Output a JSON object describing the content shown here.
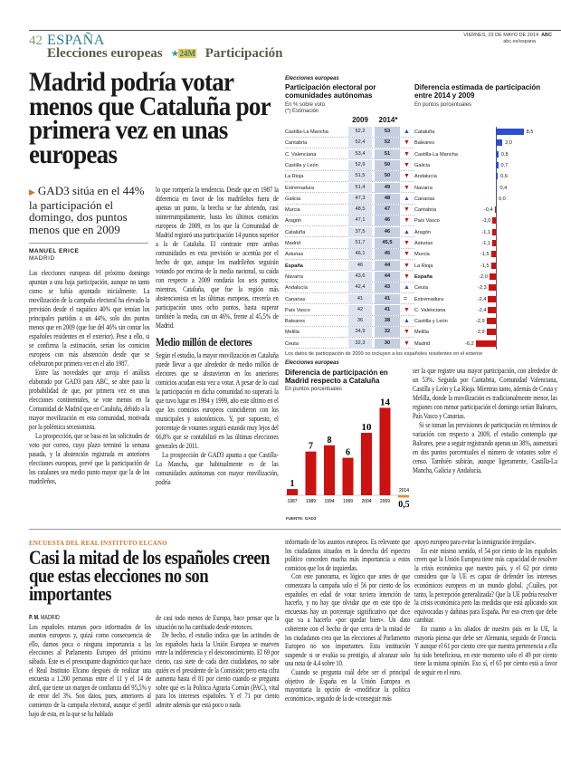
{
  "header": {
    "page_number": "42",
    "section": "ESPAÑA",
    "subsection": "Elecciones europeas",
    "logo_text": "24M",
    "topic": "Participación",
    "date": "VIERNES, 23 DE MAYO DE 2014",
    "site": "abc.es/espana",
    "brand": "ABC"
  },
  "article1": {
    "headline": "Madrid podría votar menos que Cataluña por primera vez en unas europeas",
    "dek": "GAD3 sitúa en el 44% la participación el domingo, dos puntos menos que en 2009",
    "author": "MANUEL ERICE",
    "location": "MADRID",
    "col1": [
      "Las elecciones europeas del próximo domingo apuntan a una baja participación, aunque no tanto como se había apuntado inicialmente. La movilización de la campaña electoral ha elevado la previsión desde el raquítico 40% que temían los principales partidos a un 44%, solo dos puntos menos que en 2009 (que fue del 46% sin contar los españoles residentes en el exterior). Pese a ello, si se confirma la estimación, serían los comicios europeos con más abstención desde que se celebraron por primera vez en el año 1987.",
      "Entre las novedades que arroja el análisis elaborado por GAD3 para ABC, se abre paso la probabilidad de que, por primera vez en unas elecciones continentales, se vote menos en la Comunidad de Madrid que en Cataluña, debido a la mayor movilización en esta comunidad, motivada por la polémica secesionista.",
      "La prospección, que se basa en las solicitudes de voto por correo, cuyo plazo terminó la semana pasada, y la abstención registrada en anteriores elecciones europeas, prevé que la participación de los catalanes sea medio punto mayor que la de los madrileños,"
    ],
    "col2": [
      "lo que rompería la tendencia. Desde que en 1987 la diferencia en favor de los madrileños fuera de apenas un punto, la brecha se fue abriendo, casi ininterrumpidamente, hasta los últimos comicios europeos de 2009, en los que la Comunidad de Madrid registró una participación 14 puntos superior a la de Cataluña. El contraste entre ambas comunidades en esta previsión se acentúa por el hecho de que, aunque los madrileños seguirán votando por encima de la media nacional, su caída con respecto a 2009 rondaría los seis puntos; mientras, Cataluña, que fue la región más abstencionista en las últimas europeas, crecería en participación unos ocho puntos, hasta superar también la media, con un 46%, frente al 45,5% de Madrid."
    ],
    "subhead": "Medio millón de electores",
    "col2b": [
      "Según el estudio, la mayor movilización en Cataluña puede llevar a que alrededor de medio millón de electores que se abstuvieron en los anteriores comicios acudan esta vez a votar. A pesar de lo cual la participación en dicha comunidad no superará la que tuvo lugar en 1994 y 1999, año este último en el que los comicios europeos coincidieron con los municipales y autonómicos. Y, por supuesto, el porcentaje de votantes seguirá estando muy lejos del 66,8% que se contabilizó en las últimas elecciones generales de 2011.",
      "La prospección de GAD3 apunta a que Castilla-La Mancha, que habitualmente es de las comunidades autónomas con mayor movilización, podría"
    ],
    "col3": [
      "ser la que registre una mayor participación, con alrededor de un 53%. Seguida por Cantabria, Comunidad Valenciana, Castilla y León y La Rioja. Mientras tanto, además de Ceuta y Melilla, donde la movilización es tradicionalmente menor, las regiones con menor participación el domingo serían Baleares, País Vasco y Canarias.",
      "Si se toman las previsiones de participación en términos de variación con respecto a 2009, el estudio contempla que Baleares, pese a seguir registrando apenas un 38%, aumentará en dos puntos porcentuales el número de votantes sobre el censo. También subirán, aunque ligeramente, Castilla-La Mancha, Galicia y Andalucía."
    ]
  },
  "chart_data": [
    {
      "type": "table",
      "kicker": "Elecciones europeas",
      "title": "Participación electoral por comunidades autónomas",
      "subtitle": "En % sobre voto",
      "note": "(*) Estimación",
      "columns": [
        "2009",
        "2014*"
      ],
      "rows": [
        [
          "Castilla-La Mancha",
          "52,2",
          "53",
          "up"
        ],
        [
          "Cantabria",
          "52,4",
          "52",
          "down"
        ],
        [
          "C. Valenciana",
          "53,4",
          "51",
          "down"
        ],
        [
          "Castilla y León",
          "52,9",
          "50",
          "down"
        ],
        [
          "La Rioja",
          "51,5",
          "50",
          "down"
        ],
        [
          "Extremadura",
          "51,4",
          "49",
          "down"
        ],
        [
          "Galicia",
          "47,3",
          "48",
          "up"
        ],
        [
          "Murcia",
          "48,5",
          "47",
          "down"
        ],
        [
          "Aragón",
          "47,1",
          "46",
          "down"
        ],
        [
          "Cataluña",
          "37,5",
          "46",
          "up"
        ],
        [
          "Madrid",
          "51,7",
          "45,5",
          "down"
        ],
        [
          "Asturias",
          "46,1",
          "45",
          "down"
        ],
        [
          "España",
          "46",
          "44",
          "down"
        ],
        [
          "Navarra",
          "43,6",
          "44",
          "down"
        ],
        [
          "Andalucía",
          "42,4",
          "43",
          "up"
        ],
        [
          "Canarias",
          "41",
          "41",
          "equal"
        ],
        [
          "País Vasco",
          "42",
          "41",
          "down"
        ],
        [
          "Baleares",
          "36",
          "38",
          "up"
        ],
        [
          "Melilla",
          "34,9",
          "32",
          "down"
        ],
        [
          "Ceuta",
          "32,3",
          "30",
          "down"
        ]
      ],
      "footnote": "Los datos de participación de 2009 no incluyen a los españoles residentes en el exterior"
    },
    {
      "type": "bar",
      "orientation": "horizontal",
      "title": "Diferencia estimada de participación entre 2014 y 2009",
      "subtitle": "En puntos porcentuales",
      "categories": [
        "Cataluña",
        "Baleares",
        "Castilla-La Mancha",
        "Galicia",
        "Andalucía",
        "Navarra",
        "Canarias",
        "Cantabria",
        "País Vasco",
        "Aragón",
        "Asturias",
        "Murcia",
        "La Rioja",
        "España",
        "Ceuta",
        "Extremadura",
        "C. Valenciana",
        "Castilla y León",
        "Melilla",
        "Madrid"
      ],
      "values": [
        8.5,
        2.0,
        0.8,
        0.7,
        0.6,
        0.4,
        0.0,
        -0.4,
        -1.0,
        -1.1,
        -1.1,
        -1.5,
        -1.5,
        -2.0,
        -2.3,
        -2.4,
        -2.4,
        -2.9,
        -2.9,
        -6.2
      ],
      "labels": [
        "8,5",
        "2,0",
        "0,8",
        "0,7",
        "0,6",
        "0,4",
        "0,0",
        "-0,4",
        "-1,0",
        "-1,1",
        "-1,1",
        "-1,5",
        "-1,5",
        "-2,0",
        "-2,3",
        "-2,4",
        "-2,4",
        "-2,9",
        "-2,9",
        "-6,2"
      ],
      "colors": {
        "positive": "#2a4fcf",
        "negative": "#cc1111"
      }
    },
    {
      "type": "bar",
      "kicker": "Elecciones europeas",
      "title": "Diferencia de participación en Madrid respecto a Cataluña",
      "subtitle": "En puntos porcentuales",
      "categories": [
        "1987",
        "1989",
        "1994",
        "1999",
        "2004",
        "2009",
        "2014"
      ],
      "values": [
        1,
        7,
        8,
        6,
        10,
        14,
        -0.5
      ],
      "labels": [
        "1",
        "7",
        "8",
        "6",
        "10",
        "14",
        "0,5"
      ],
      "colors": {
        "past": "#cc1111",
        "estimate": "#e88a2a"
      },
      "source": "FUENTE: GAD3"
    }
  ],
  "article2": {
    "kicker": "ENCUESTA DEL REAL INSTITUTO ELCANO",
    "headline": "Casi la mitad de los españoles creen que estas elecciones no son importantes",
    "author": "P. M.",
    "location": "MADRID",
    "col1": [
      "Los españoles estamos poco informados de los asuntos europeos y, quizá como consecuencia de ello, damos poca o ninguna importancia a las elecciones al Parlamento Europeo del próximo sábado. Este es el preocupante diagnóstico que hace el Real Instituto Elcano después de realizar una encuesta a 1.200 personas entre el 11 y el 14 de abril, que tiene un margen de confianza del 95,5% y de error del 3%. Son datos, pues, anteriores al comienzo de la campaña electoral, aunque el perfil bajo de esta, en la que se ha hablado"
    ],
    "col2": [
      "de casi todo menos de Europa, hace pensar que la situación no ha cambiado desde entonces.",
      "De hecho, el estudio indica que las actitudes de los españoles hacia la Unión Europea se mueven entre la indiferencia y el desconocimiento. El 69 por ciento, casi siete de cada diez ciudadanos, no sabe quién es el presidente de la Comisión; pero esta cifra aumenta hasta el 81 por ciento cuando se pregunta sobre qué es la Política Agraria Común (PAC), vital para los intereses españoles. Y el 71 por ciento admite además que está poco o nada"
    ],
    "col3": [
      "informado de los asuntos europeos. Es relevante que los ciudadanos situados en la derecha del espectro político conceden mucha más importancia a estos comicios que los de izquierdas.",
      "Con este panorama, es lógico que antes de que comenzara la campaña solo el 56 por ciento de los españoles en edad de votar tuviera intención de hacerlo, y no hay que olvidar que en este tipo de encuestas hay un porcentaje significativo que dice que va a hacerlo «por quedar bien». Un dato coherente con el hecho de que cerca de la mitad de los ciudadanos crea que las elecciones al Parlamento Europeo no son importantes. Esta institución suspende si se evalúa su prestigio, al alcanzar solo una nota de 4,4 sobre 10.",
      "Cuando se pregunta cuál debe ser el principal objetivo de España en la Unión Europea es mayoritaria la opción de «modificar la política económica», seguido de la de «conseguir más"
    ],
    "col4": [
      "apoyo europeo para evitar la inmigración irregular».",
      "En este mismo sentido, el 54 por ciento de los españoles creen que la Unión Europea tiene más capacidad de resolver la crisis económica que nuestro país, y el 62 por ciento considera que la UE es capaz de defender los intereses económicos europeos en un mundo global. ¿Cuáles, por tanto, la percepción generalizada? Que la UE podría resolver la crisis económica pero las medidas que está aplicando son equivocadas y dañinas para España. Por eso creen que debe cambiar.",
      "En cuanto a los aliados de nuestro país en la UE, la mayoría piensa que debe ser Alemania, seguido de Francia. Y aunque el 61 por ciento cree que nuestra pertenencia a ella ha sido beneficiosa, en este momento solo el 49 por ciento tiene la misma opinión. Eso sí, el 65 por ciento está a favor de seguir en el euro."
    ]
  }
}
